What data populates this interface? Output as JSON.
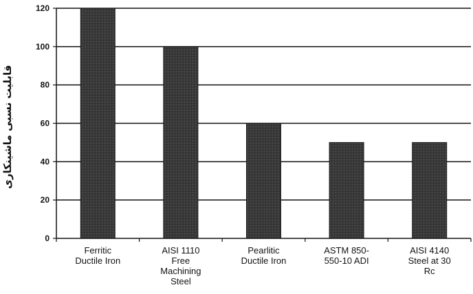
{
  "chart_data": {
    "type": "bar",
    "title": "",
    "xlabel": "",
    "ylabel": "قابلیت نسبی ماشینکاری",
    "categories": [
      [
        "Ferritic",
        "Ductile Iron"
      ],
      [
        "AISI 1110",
        "Free",
        "Machining",
        "Steel"
      ],
      [
        "Pearlitic",
        "Ductile Iron"
      ],
      [
        "ASTM 850-",
        "550-10 ADI"
      ],
      [
        "AISI 4140",
        "Steel at 30",
        "Rc"
      ]
    ],
    "values": [
      120,
      100,
      60,
      50,
      50
    ],
    "ylim": [
      0,
      120
    ],
    "yticks": [
      0,
      20,
      40,
      60,
      80,
      100,
      120
    ],
    "grid": true,
    "bar_color": "#3a3a3a",
    "grid_color": "#111111"
  }
}
